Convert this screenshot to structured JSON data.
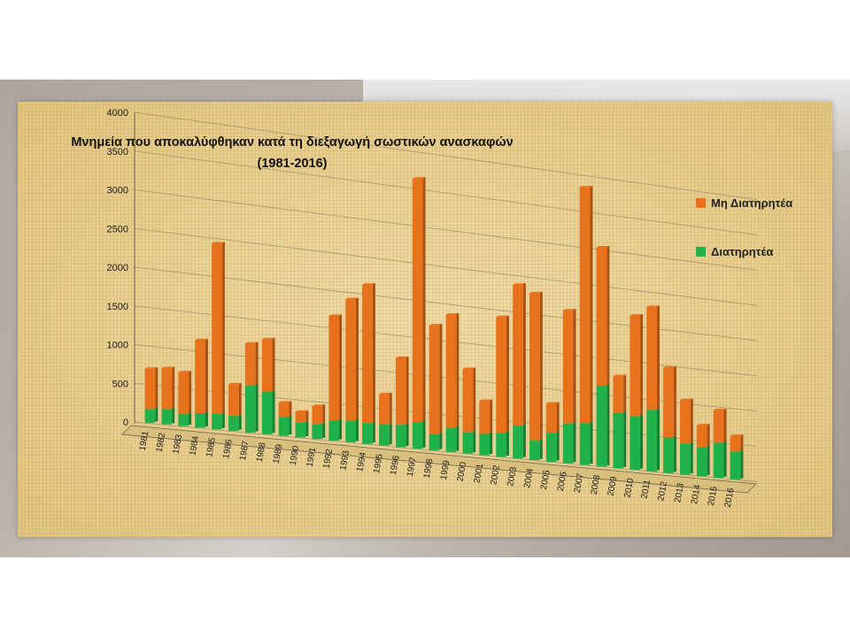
{
  "colors": {
    "non_preserved": "#e8711c",
    "preserved": "#1fb24a",
    "gridline": "#8c8064",
    "axis": "#6d6350"
  },
  "chart_data": {
    "type": "bar",
    "stacked": true,
    "title": "Μνημεία που αποκαλύφθηκαν κατά τη διεξαγωγή σωστικών ανασκαφών",
    "subtitle": "(1981-2016)",
    "xlabel": "",
    "ylabel": "",
    "ylim": [
      0,
      4000
    ],
    "yticks": [
      0,
      500,
      1000,
      1500,
      2000,
      2500,
      3000,
      3500,
      4000
    ],
    "grid": true,
    "legend_position": "right",
    "categories": [
      "1981",
      "1982",
      "1983",
      "1984",
      "1985",
      "1986",
      "1987",
      "1988",
      "1989",
      "1990",
      "1991",
      "1992",
      "1993",
      "1994",
      "1995",
      "1996",
      "1997",
      "1998",
      "1999",
      "2000",
      "2001",
      "2002",
      "2003",
      "2004",
      "2005",
      "2006",
      "2007",
      "2008",
      "2009",
      "2010",
      "2011",
      "2012",
      "2013",
      "2014",
      "2015",
      "2016"
    ],
    "series": [
      {
        "name": "Διατηρητέα",
        "color_key": "preserved",
        "values": [
          180,
          200,
          160,
          190,
          200,
          200,
          620,
          560,
          250,
          200,
          200,
          270,
          290,
          280,
          280,
          300,
          360,
          220,
          330,
          290,
          290,
          330,
          450,
          270,
          400,
          550,
          580,
          1120,
          770,
          750,
          860,
          500,
          440,
          410,
          500,
          400
        ]
      },
      {
        "name": "Μη Διατηρητέα",
        "color_key": "non_preserved",
        "values": [
          520,
          530,
          540,
          950,
          2230,
          410,
          550,
          690,
          190,
          140,
          240,
          1390,
          1620,
          1850,
          410,
          900,
          3280,
          1470,
          1530,
          860,
          450,
          1580,
          1930,
          2020,
          400,
          1560,
          3260,
          1920,
          510,
          1400,
          1440,
          980,
          610,
          310,
          460,
          220
        ]
      }
    ]
  }
}
